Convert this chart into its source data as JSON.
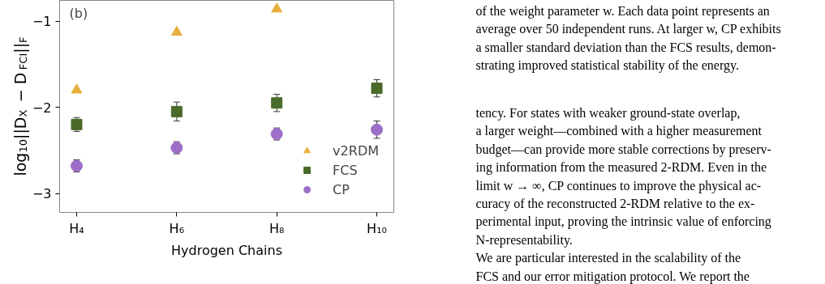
{
  "chart_data": {
    "type": "scatter",
    "xlabel": "Hydrogen Chains",
    "ylabel": "log$_{10}$||D$_{X}$ − D$_{FCI}$||$_{F}$",
    "categories": [
      "H₄",
      "H₆",
      "H₈",
      "H₁₀"
    ],
    "ylim": [
      -3.22,
      -0.76
    ],
    "yticks": [
      {
        "value": -3,
        "label": "−3"
      },
      {
        "value": -2,
        "label": "−2"
      },
      {
        "value": -1,
        "label": "−1"
      }
    ],
    "grid": false,
    "legend": "bottom right",
    "series": [
      {
        "name": "v2RDM",
        "color": "#e6b03e",
        "marker": "triangle",
        "values": [
          -1.8,
          -1.13,
          -0.86,
          null
        ]
      },
      {
        "name": "FCS",
        "color": "#4a6a2a",
        "marker": "square",
        "values": [
          -2.2,
          -2.05,
          -1.95,
          -1.78
        ],
        "errors": [
          0.08,
          0.11,
          0.1,
          0.1
        ]
      },
      {
        "name": "CP",
        "color": "#9d6fc8",
        "marker": "circle",
        "values": [
          -2.68,
          -2.47,
          -2.31,
          -2.26
        ],
        "errors": [
          0.07,
          0.07,
          0.07,
          0.1
        ]
      }
    ],
    "annotations": [
      "(b)",
      "of the weight parameter w.  Each data point represents an",
      "average over 50 independent runs.  At larger w, CP exhibits",
      "a smaller standard deviation than the FCS results, demon-",
      "strating improved statistical stability of the energy.",
      "tency.   For states with weaker ground-state overlap,",
      "a larger weight—combined with a higher measurement",
      "budget—can provide more stable corrections by preserv-",
      "ing information from the measured 2-RDM. Even in the",
      "limit w → ∞, CP continues to improve the physical ac-",
      "curacy of the reconstructed 2-RDM relative to the ex-",
      "perimental input, proving the intrinsic value of enforcing",
      "N-representability.",
      "    We are particular interested in the scalability of the",
      "FCS and our error mitigation protocol.  We report the"
    ]
  }
}
